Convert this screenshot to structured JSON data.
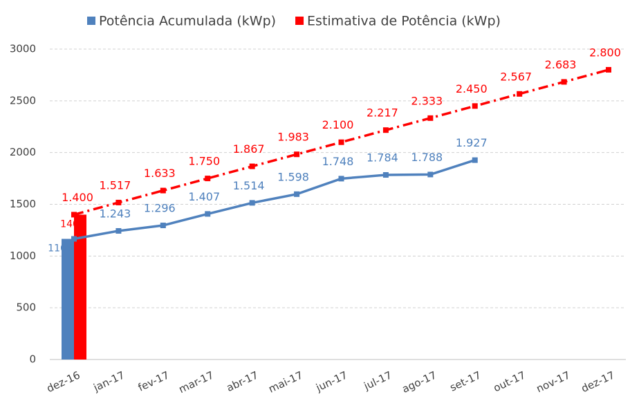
{
  "chart_data": {
    "type": "line",
    "categories": [
      "dez-16",
      "jan-17",
      "fev-17",
      "mar-17",
      "abr-17",
      "mai-17",
      "jun-17",
      "jul-17",
      "ago-17",
      "set-17",
      "out-17",
      "nov-17",
      "dez-17"
    ],
    "series": [
      {
        "name": "Potência Acumulada (kWp)",
        "color": "#4f81bd",
        "dash": false,
        "bar_values": [
          1166,
          null,
          null,
          null,
          null,
          null,
          null,
          null,
          null,
          null,
          null,
          null,
          null
        ],
        "values": [
          1166,
          1243,
          1296,
          1407,
          1514,
          1598,
          1748,
          1784,
          1788,
          1927,
          null,
          null,
          null
        ],
        "value_labels": [
          null,
          "1.243",
          "1.296",
          "1.407",
          "1.514",
          "1.598",
          "1.748",
          "1.784",
          "1.788",
          "1.927",
          null,
          null,
          null
        ]
      },
      {
        "name": "Estimativa de Potência (kWp)",
        "color": "#ff0000",
        "dash": true,
        "bar_values": [
          1400,
          null,
          null,
          null,
          null,
          null,
          null,
          null,
          null,
          null,
          null,
          null,
          null
        ],
        "values": [
          1400,
          1517,
          1633,
          1750,
          1867,
          1983,
          2100,
          2217,
          2333,
          2450,
          2567,
          2683,
          2800
        ],
        "value_labels": [
          "1.400",
          "1.517",
          "1.633",
          "1.750",
          "1.867",
          "1.983",
          "2.100",
          "2.217",
          "2.333",
          "2.450",
          "2.567",
          "2.683",
          "2.800"
        ]
      }
    ],
    "ylim": [
      0,
      3000
    ],
    "yticks": [
      0,
      500,
      1000,
      1500,
      2000,
      2500,
      3000
    ],
    "grid": true,
    "legend": "top"
  }
}
